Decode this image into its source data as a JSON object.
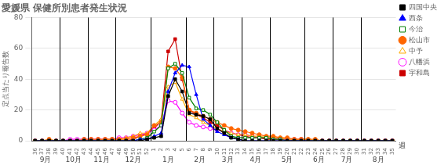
{
  "chart_data": {
    "type": "line",
    "title": "愛媛県 保健所別患者発生状況",
    "y_label": "定点当たり報告数",
    "x_label": "週",
    "categories": [
      "36",
      "37",
      "38",
      "39",
      "40",
      "41",
      "42",
      "43",
      "44",
      "45",
      "46",
      "47",
      "48",
      "49",
      "50",
      "51",
      "52",
      "1",
      "2",
      "3",
      "4",
      "5",
      "6",
      "7",
      "8",
      "9",
      "10",
      "11",
      "12",
      "13",
      "14",
      "15",
      "16",
      "17",
      "18",
      "19",
      "20",
      "21",
      "22",
      "23",
      "24",
      "25",
      "26",
      "27",
      "28",
      "29",
      "30",
      "31",
      "32",
      "33",
      "34",
      "35"
    ],
    "months": [
      {
        "label": "9月",
        "first_week": "36"
      },
      {
        "label": "10月",
        "first_week": "40"
      },
      {
        "label": "11月",
        "first_week": "44"
      },
      {
        "label": "12月",
        "first_week": "48"
      },
      {
        "label": "1月",
        "first_week": "1"
      },
      {
        "label": "2月",
        "first_week": "6"
      },
      {
        "label": "3月",
        "first_week": "10"
      },
      {
        "label": "4月",
        "first_week": "14"
      },
      {
        "label": "5月",
        "first_week": "18"
      },
      {
        "label": "6月",
        "first_week": "23"
      },
      {
        "label": "7月",
        "first_week": "27"
      },
      {
        "label": "8月",
        "first_week": "31"
      }
    ],
    "series": [
      {
        "name": "四国中央",
        "color": "#000000",
        "marker": "square",
        "values": [
          0,
          0,
          0,
          0,
          0,
          0,
          0,
          0,
          0,
          0,
          0,
          0,
          0,
          0,
          0,
          0,
          1,
          2,
          3,
          29,
          40,
          32,
          18,
          17,
          16,
          14,
          8,
          5,
          2,
          1,
          0,
          0,
          0,
          0,
          0,
          0,
          0,
          0,
          0,
          0,
          0,
          0,
          0,
          0,
          0,
          0,
          0,
          0,
          0,
          0,
          0,
          0
        ]
      },
      {
        "name": "西条",
        "color": "#0000ff",
        "marker": "triangle",
        "values": [
          0,
          0,
          0,
          0,
          0,
          0,
          0,
          0,
          0,
          0,
          0,
          0,
          0,
          0,
          0,
          1,
          1,
          3,
          5,
          32,
          44,
          49,
          48,
          30,
          14,
          10,
          6,
          4,
          2,
          1,
          0,
          0,
          0,
          0,
          0,
          0,
          0,
          0,
          0,
          0,
          0,
          0,
          0,
          0,
          0,
          0,
          0,
          0,
          0,
          0,
          0,
          0
        ]
      },
      {
        "name": "今治",
        "color": "#008000",
        "marker": "open_square",
        "values": [
          0,
          0,
          0,
          0,
          0,
          0,
          0,
          0,
          0,
          0,
          0,
          0,
          0,
          0,
          0,
          1,
          2,
          6,
          10,
          47,
          50,
          44,
          28,
          21,
          20,
          17,
          12,
          7,
          3,
          2,
          2,
          2,
          2,
          2,
          1,
          1,
          0,
          0,
          0,
          0,
          0,
          0,
          0,
          0,
          0,
          0,
          0,
          0,
          0,
          0,
          0,
          0
        ]
      },
      {
        "name": "松山市",
        "color": "#ff6600",
        "marker": "circle",
        "values": [
          0,
          0,
          1,
          0,
          0,
          0,
          0,
          1,
          1,
          1,
          1,
          1,
          1,
          1,
          2,
          3,
          4,
          10,
          12,
          48,
          47,
          41,
          20,
          18,
          16,
          14,
          12,
          10,
          8,
          7,
          6,
          5,
          4,
          3,
          3,
          2,
          2,
          1,
          1,
          1,
          1,
          0,
          0,
          0,
          0,
          0,
          0,
          0,
          0,
          0,
          0,
          0
        ]
      },
      {
        "name": "中予",
        "color": "#ffaa00",
        "marker": "open_triangle",
        "values": [
          0,
          0,
          0,
          0,
          0,
          0,
          0,
          0,
          0,
          0,
          1,
          1,
          1,
          2,
          3,
          5,
          5,
          10,
          14,
          35,
          38,
          27,
          17,
          15,
          12,
          10,
          8,
          6,
          5,
          4,
          4,
          3,
          3,
          2,
          2,
          2,
          1,
          1,
          1,
          1,
          0,
          0,
          0,
          0,
          0,
          0,
          0,
          0,
          0,
          0,
          0,
          0
        ]
      },
      {
        "name": "八幡浜",
        "color": "#ff00ff",
        "marker": "open_circle",
        "values": [
          0,
          0,
          0,
          0,
          0,
          1,
          1,
          1,
          1,
          1,
          1,
          1,
          2,
          2,
          3,
          4,
          5,
          7,
          10,
          26,
          25,
          18,
          12,
          10,
          9,
          8,
          7,
          6,
          5,
          4,
          4,
          3,
          2,
          2,
          2,
          1,
          1,
          1,
          1,
          0,
          0,
          0,
          0,
          0,
          0,
          0,
          0,
          0,
          0,
          0,
          0,
          0
        ]
      },
      {
        "name": "宇和島",
        "color": "#cc0000",
        "marker": "square",
        "values": [
          0,
          0,
          0,
          0,
          0,
          0,
          0,
          0,
          0,
          0,
          0,
          0,
          0,
          0,
          1,
          3,
          5,
          8,
          13,
          58,
          66,
          40,
          20,
          17,
          15,
          12,
          10,
          7,
          5,
          4,
          3,
          2,
          2,
          1,
          1,
          1,
          1,
          0,
          0,
          0,
          0,
          0,
          0,
          0,
          0,
          0,
          0,
          0,
          0,
          0,
          0,
          0
        ]
      }
    ],
    "ylim": [
      0,
      80
    ],
    "yticks": [
      0,
      20,
      40,
      60,
      80
    ],
    "grid": true,
    "legend": "upper right"
  }
}
